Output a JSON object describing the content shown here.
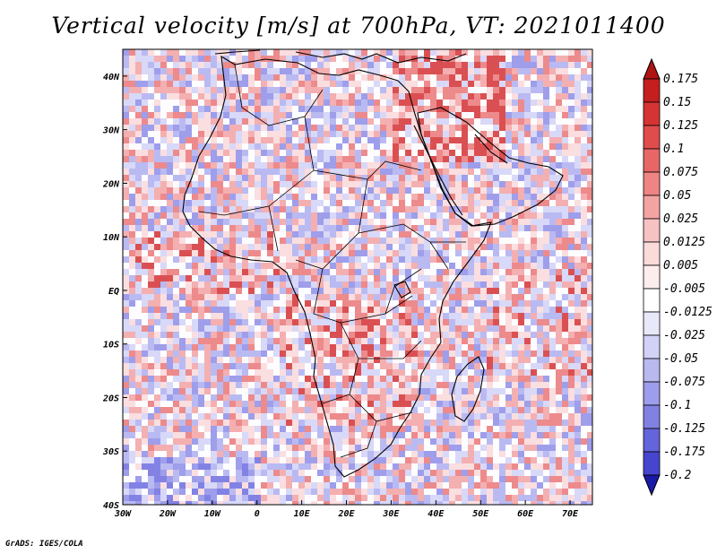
{
  "title": "Vertical velocity [m/s] at 700hPa, VT: 2021011400",
  "credit": "GrADS: IGES/COLA",
  "map": {
    "lon_range": [
      -30,
      75
    ],
    "lat_range": [
      -40,
      45
    ],
    "lon_ticks": [
      {
        "value": -30,
        "label": "30W"
      },
      {
        "value": -20,
        "label": "20W"
      },
      {
        "value": -10,
        "label": "10W"
      },
      {
        "value": 0,
        "label": "0"
      },
      {
        "value": 10,
        "label": "10E"
      },
      {
        "value": 20,
        "label": "20E"
      },
      {
        "value": 30,
        "label": "30E"
      },
      {
        "value": 40,
        "label": "40E"
      },
      {
        "value": 50,
        "label": "50E"
      },
      {
        "value": 60,
        "label": "60E"
      },
      {
        "value": 70,
        "label": "70E"
      }
    ],
    "lat_ticks": [
      {
        "value": 40,
        "label": "40N"
      },
      {
        "value": 30,
        "label": "30N"
      },
      {
        "value": 20,
        "label": "20N"
      },
      {
        "value": 10,
        "label": "10N"
      },
      {
        "value": 0,
        "label": "EQ"
      },
      {
        "value": -10,
        "label": "10S"
      },
      {
        "value": -20,
        "label": "20S"
      },
      {
        "value": -30,
        "label": "30S"
      },
      {
        "value": -40,
        "label": "40S"
      }
    ]
  },
  "colorbar": {
    "levels": [
      {
        "label": "0.175",
        "color": "#c41e1e"
      },
      {
        "label": "0.15",
        "color": "#d63434"
      },
      {
        "label": "0.125",
        "color": "#e04c4c"
      },
      {
        "label": "0.1",
        "color": "#e86666"
      },
      {
        "label": "0.075",
        "color": "#ef8484"
      },
      {
        "label": "0.05",
        "color": "#f4a3a3"
      },
      {
        "label": "0.025",
        "color": "#f8c2c2"
      },
      {
        "label": "0.0125",
        "color": "#fbdada"
      },
      {
        "label": "0.005",
        "color": "#fdeeee"
      },
      {
        "label": "-0.005",
        "color": "#ffffff"
      },
      {
        "label": "-0.0125",
        "color": "#e8e8fb"
      },
      {
        "label": "-0.025",
        "color": "#d2d2f6"
      },
      {
        "label": "-0.05",
        "color": "#b9b9f0"
      },
      {
        "label": "-0.075",
        "color": "#9d9deb"
      },
      {
        "label": "-0.1",
        "color": "#8181e4"
      },
      {
        "label": "-0.125",
        "color": "#6464db"
      },
      {
        "label": "-0.175",
        "color": "#4545d0"
      },
      {
        "label": "-0.2",
        "color": "#2323bf"
      }
    ],
    "bottom_color": "#1a1aa8",
    "top_color": "#b01414"
  }
}
